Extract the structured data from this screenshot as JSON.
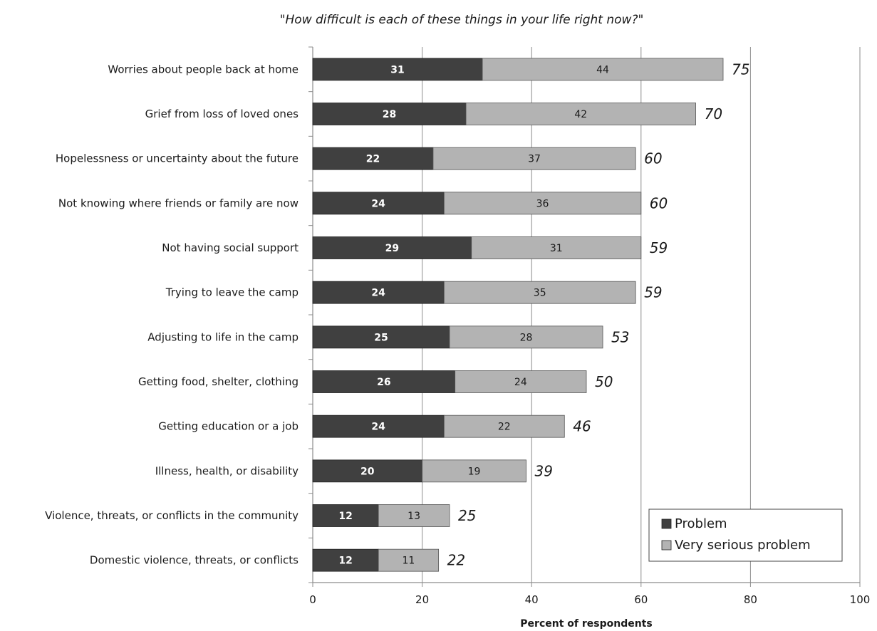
{
  "chart_data": {
    "type": "bar",
    "orientation": "horizontal",
    "stacked": true,
    "title": "\"How difficult is each of these things in your life right now?\"",
    "xlabel": "Percent of respondents",
    "ylabel": "",
    "xlim": [
      0,
      100
    ],
    "xticks": [
      "0",
      "20",
      "40",
      "60",
      "80",
      "100"
    ],
    "grid": "vertical",
    "legend_position": "bottom-right",
    "categories": [
      "Worries about people back at home",
      "Grief from loss of loved ones",
      "Hopelessness or uncertainty about the future",
      "Not knowing where friends or family are now",
      "Not having social support",
      "Trying to leave the camp",
      "Adjusting to life in the camp",
      "Getting food, shelter, clothing",
      "Getting education or a job",
      "Illness, health, or disability",
      "Violence, threats, or conflicts in the community",
      "Domestic violence, threats, or conflicts"
    ],
    "series": [
      {
        "name": "Problem",
        "color": "#404040",
        "values": [
          31,
          28,
          22,
          24,
          29,
          24,
          25,
          26,
          24,
          20,
          12,
          12
        ]
      },
      {
        "name": "Very serious problem",
        "color": "#b3b3b3",
        "values": [
          44,
          42,
          37,
          36,
          31,
          35,
          28,
          24,
          22,
          19,
          13,
          11
        ]
      }
    ],
    "totals": [
      "75",
      "70",
      "60",
      "60",
      "59",
      "59",
      "53",
      "50",
      "46",
      "39",
      "25",
      "22"
    ]
  }
}
